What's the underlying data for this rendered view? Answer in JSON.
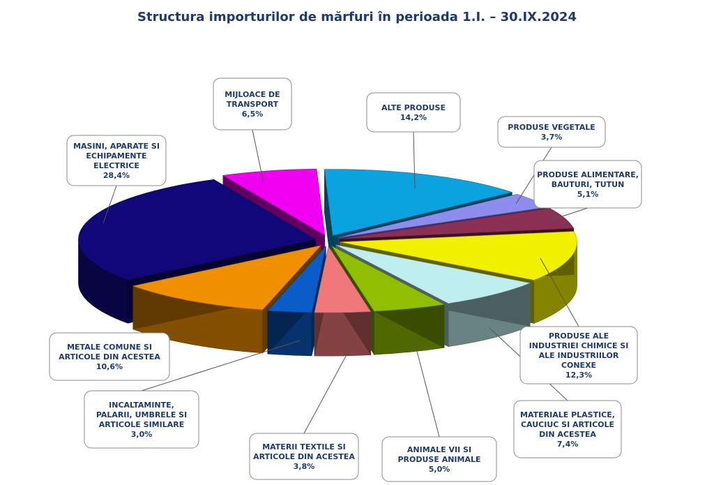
{
  "chart_data": {
    "type": "pie",
    "style": "3d-exploded",
    "title": "Structura importurilor de mărfuri în perioada 1.I. – 30.IX.2024",
    "slices": [
      {
        "name": "ALTE PRODUSE",
        "value": 14.2,
        "value_label": "14,2%",
        "color": "#0aa3e0"
      },
      {
        "name": "PRODUSE VEGETALE",
        "value": 3.7,
        "value_label": "3,7%",
        "color": "#8f8cf0"
      },
      {
        "name": "PRODUSE ALIMENTARE, BAUTURI, TUTUN",
        "value": 5.1,
        "value_label": "5,1%",
        "color": "#8c2f55"
      },
      {
        "name": "PRODUSE ALE INDUSTRIEI CHIMICE SI ALE INDUSTRIILOR CONEXE",
        "value": 12.3,
        "value_label": "12,3%",
        "color": "#f0f000"
      },
      {
        "name": "MATERIALE PLASTICE, CAUCIUC SI ARTICOLE DIN ACESTEA",
        "value": 7.4,
        "value_label": "7,4%",
        "color": "#bfeef0"
      },
      {
        "name": "ANIMALE VII SI PRODUSE ANIMALE",
        "value": 5.0,
        "value_label": "5,0%",
        "color": "#8fbf00"
      },
      {
        "name": "MATERII TEXTILE SI ARTICOLE DIN ACESTEA",
        "value": 3.8,
        "value_label": "3,8%",
        "color": "#f07878"
      },
      {
        "name": "INCALTAMINTE, PALARII, UMBRELE SI ARTICOLE SIMILARE",
        "value": 3.0,
        "value_label": "3,0%",
        "color": "#0a5cc8"
      },
      {
        "name": "METALE COMUNE SI ARTICOLE DIN ACESTEA",
        "value": 10.6,
        "value_label": "10,6%",
        "color": "#f09000"
      },
      {
        "name": "MASINI, APARATE SI ECHIPAMENTE ELECTRICE",
        "value": 28.4,
        "value_label": "28,4%",
        "color": "#100878"
      },
      {
        "name": "MIJLOACE DE TRANSPORT",
        "value": 6.5,
        "value_label": "6,5%",
        "color": "#f000f0"
      }
    ]
  }
}
